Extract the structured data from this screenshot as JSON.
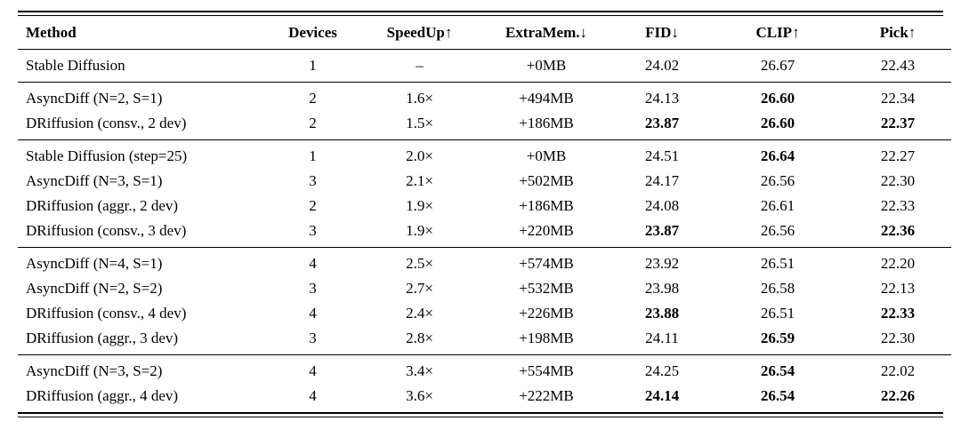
{
  "colors": {
    "text": "#000000",
    "background": "#ffffff",
    "rule": "#000000"
  },
  "table": {
    "columns": [
      {
        "key": "method",
        "label": "Method",
        "arrow": ""
      },
      {
        "key": "devices",
        "label": "Devices",
        "arrow": ""
      },
      {
        "key": "speedup",
        "label": "SpeedUp",
        "arrow": "↑"
      },
      {
        "key": "extramem",
        "label": "ExtraMem.",
        "arrow": "↓"
      },
      {
        "key": "fid",
        "label": "FID",
        "arrow": "↓"
      },
      {
        "key": "clip",
        "label": "CLIP",
        "arrow": "↑"
      },
      {
        "key": "pick",
        "label": "Pick",
        "arrow": "↑"
      }
    ],
    "groups": [
      {
        "rows": [
          {
            "method": "Stable Diffusion",
            "devices": "1",
            "speedup": "–",
            "extramem": "+0MB",
            "fid": "24.02",
            "clip": "26.67",
            "pick": "22.43",
            "bold": []
          }
        ]
      },
      {
        "rows": [
          {
            "method": "AsyncDiff (N=2, S=1)",
            "devices": "2",
            "speedup": "1.6×",
            "extramem": "+494MB",
            "fid": "24.13",
            "clip": "26.60",
            "pick": "22.34",
            "bold": [
              "clip"
            ]
          },
          {
            "method": "DRiffusion (consv., 2 dev)",
            "devices": "2",
            "speedup": "1.5×",
            "extramem": "+186MB",
            "fid": "23.87",
            "clip": "26.60",
            "pick": "22.37",
            "bold": [
              "fid",
              "clip",
              "pick"
            ]
          }
        ]
      },
      {
        "rows": [
          {
            "method": "Stable Diffusion (step=25)",
            "devices": "1",
            "speedup": "2.0×",
            "extramem": "+0MB",
            "fid": "24.51",
            "clip": "26.64",
            "pick": "22.27",
            "bold": [
              "clip"
            ]
          },
          {
            "method": "AsyncDiff (N=3, S=1)",
            "devices": "3",
            "speedup": "2.1×",
            "extramem": "+502MB",
            "fid": "24.17",
            "clip": "26.56",
            "pick": "22.30",
            "bold": []
          },
          {
            "method": "DRiffusion (aggr., 2 dev)",
            "devices": "2",
            "speedup": "1.9×",
            "extramem": "+186MB",
            "fid": "24.08",
            "clip": "26.61",
            "pick": "22.33",
            "bold": []
          },
          {
            "method": "DRiffusion (consv., 3 dev)",
            "devices": "3",
            "speedup": "1.9×",
            "extramem": "+220MB",
            "fid": "23.87",
            "clip": "26.56",
            "pick": "22.36",
            "bold": [
              "fid",
              "pick"
            ]
          }
        ]
      },
      {
        "rows": [
          {
            "method": "AsyncDiff (N=4, S=1)",
            "devices": "4",
            "speedup": "2.5×",
            "extramem": "+574MB",
            "fid": "23.92",
            "clip": "26.51",
            "pick": "22.20",
            "bold": []
          },
          {
            "method": "AsyncDiff (N=2, S=2)",
            "devices": "3",
            "speedup": "2.7×",
            "extramem": "+532MB",
            "fid": "23.98",
            "clip": "26.58",
            "pick": "22.13",
            "bold": []
          },
          {
            "method": "DRiffusion (consv., 4 dev)",
            "devices": "4",
            "speedup": "2.4×",
            "extramem": "+226MB",
            "fid": "23.88",
            "clip": "26.51",
            "pick": "22.33",
            "bold": [
              "fid",
              "pick"
            ]
          },
          {
            "method": "DRiffusion (aggr., 3 dev)",
            "devices": "3",
            "speedup": "2.8×",
            "extramem": "+198MB",
            "fid": "24.11",
            "clip": "26.59",
            "pick": "22.30",
            "bold": [
              "clip"
            ]
          }
        ]
      },
      {
        "rows": [
          {
            "method": "AsyncDiff (N=3, S=2)",
            "devices": "4",
            "speedup": "3.4×",
            "extramem": "+554MB",
            "fid": "24.25",
            "clip": "26.54",
            "pick": "22.02",
            "bold": [
              "clip"
            ]
          },
          {
            "method": "DRiffusion (aggr., 4 dev)",
            "devices": "4",
            "speedup": "3.6×",
            "extramem": "+222MB",
            "fid": "24.14",
            "clip": "26.54",
            "pick": "22.26",
            "bold": [
              "fid",
              "clip",
              "pick"
            ]
          }
        ]
      }
    ]
  }
}
